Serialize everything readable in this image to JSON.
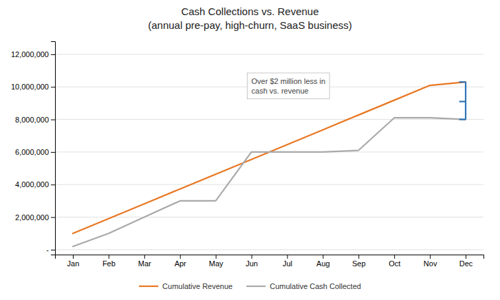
{
  "chart_data": {
    "type": "line",
    "title": "Cash Collections vs. Revenue\n(annual pre-pay, high-churn, SaaS business)",
    "categories": [
      "Jan",
      "Feb",
      "Mar",
      "Apr",
      "May",
      "Jun",
      "Jul",
      "Aug",
      "Sep",
      "Oct",
      "Nov",
      "Dec"
    ],
    "series": [
      {
        "name": "Cumulative Revenue",
        "color": "#E87722",
        "values": [
          1000000,
          1909091,
          2818182,
          3727273,
          4636364,
          5545455,
          6454545,
          7363636,
          8272727,
          9181818,
          10090909,
          10300000
        ]
      },
      {
        "name": "Cumulative Cash Collected",
        "color": "#A9A9A9",
        "values": [
          200000,
          1000000,
          2000000,
          3000000,
          3000000,
          6000000,
          6000000,
          6000000,
          6100000,
          8100000,
          8100000,
          8000000
        ]
      }
    ],
    "bracket": {
      "category": "Dec",
      "values": [
        10300000,
        9100000,
        8000000
      ],
      "color": "#2E75B6"
    },
    "annotations": [
      "Over $2 million less in\ncash vs. revenue"
    ],
    "ylim": [
      -300000,
      12800000
    ],
    "yticks": [
      {
        "value": 0,
        "label": "-"
      },
      {
        "value": 2000000,
        "label": "2,000,000"
      },
      {
        "value": 4000000,
        "label": "4,000,000"
      },
      {
        "value": 6000000,
        "label": "6,000,000"
      },
      {
        "value": 8000000,
        "label": "8,000,000"
      },
      {
        "value": 10000000,
        "label": "10,000,000"
      },
      {
        "value": 12000000,
        "label": "12,000,000"
      }
    ],
    "grid": true,
    "legend": "bottom"
  }
}
